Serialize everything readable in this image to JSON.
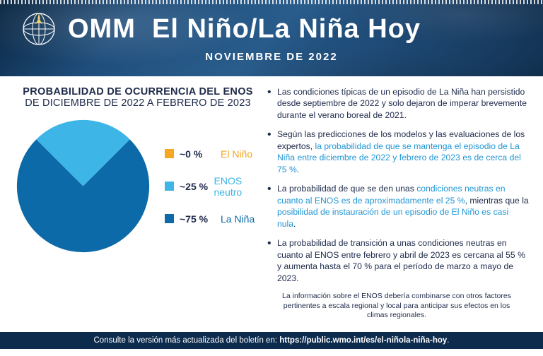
{
  "header": {
    "org": "OMM",
    "title_rest": "El Niño/La Niña Hoy",
    "subtitle": "NOVIEMBRE DE 2022"
  },
  "chart": {
    "type": "pie",
    "title_line1": "PROBABILIDAD DE OCURRENCIA DEL ENOS",
    "title_line2": "DE DICIEMBRE DE 2022 A FEBRERO DE 2023",
    "background_color": "#ffffff",
    "slices": [
      {
        "label": "El Niño",
        "pct_text": "~0 %",
        "value": 0,
        "color": "#f5a623",
        "label_color": "#f5a623"
      },
      {
        "label": "ENOS neutro",
        "pct_text": "~25 %",
        "value": 25,
        "color": "#3db5e6",
        "label_color": "#3db5e6"
      },
      {
        "label": "La Niña",
        "pct_text": "~75 %",
        "value": 75,
        "color": "#0d6aa8",
        "label_color": "#0d6aa8"
      }
    ],
    "start_angle_deg": -45
  },
  "bullets": [
    {
      "pre": "Las condiciones típicas de un episodio de La Niña han persistido desde septiembre de 2022 y solo dejaron de imperar brevemente durante el verano boreal de 2021.",
      "hl": "",
      "post": ""
    },
    {
      "pre": "Según las predicciones de los modelos y las evaluaciones de los expertos, ",
      "hl": "la probabilidad de que se mantenga el episodio de La Niña entre diciembre de 2022 y febrero de 2023 es de cerca del 75 %",
      "post": "."
    },
    {
      "pre": "La probabilidad de que se den unas ",
      "hl": "condiciones neutras en cuanto al ENOS es de aproximadamente el 25 %",
      "mid": ", mientras que la ",
      "hl2": "posibilidad de instauración de un episodio de El Niño es casi nula",
      "post": "."
    },
    {
      "pre": "La probabilidad de transición a unas condiciones neutras en cuanto al ENOS entre febrero y abril de 2023 es cercana al 55 % y aumenta hasta el 70 % para el período de marzo a mayo de 2023.",
      "hl": "",
      "post": ""
    }
  ],
  "footnote": "La información sobre el ENOS debería combinarse con otros factores pertinentes a escala regional y local para anticipar sus efectos en los climas regionales.",
  "footer": {
    "text": "Consulte la versión más actualizada del boletín en: ",
    "url": "https://public.wmo.int/es/el-niñola-niña-hoy",
    "suffix": "."
  },
  "colors": {
    "header_bg": "#1e4d7b",
    "footer_bg": "#0d2b4d",
    "text_dark": "#1e2a4a",
    "highlight": "#2196d4"
  }
}
